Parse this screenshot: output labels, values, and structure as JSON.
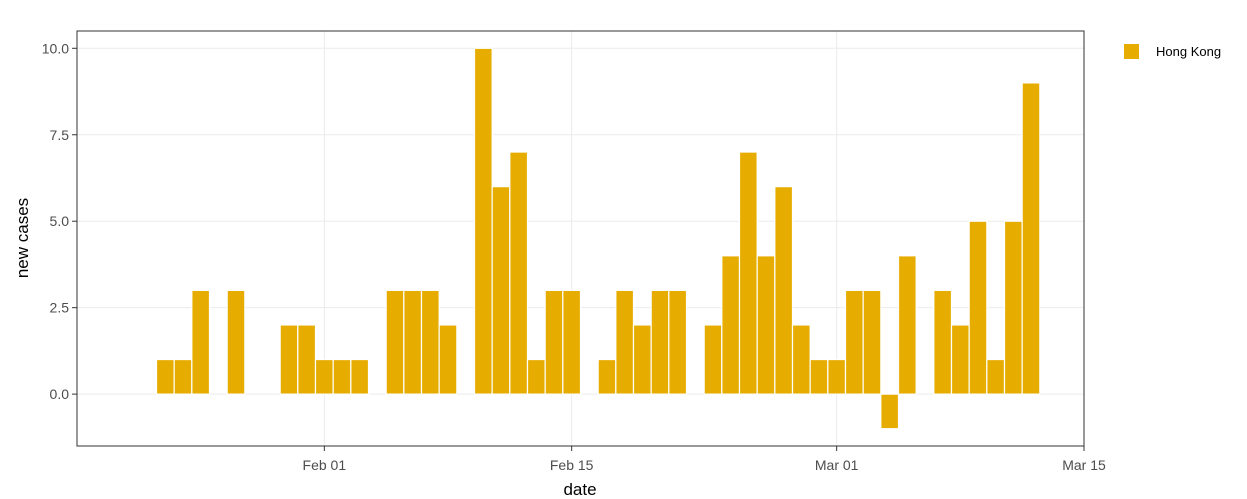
{
  "chart_data": {
    "type": "bar",
    "xlabel": "date",
    "ylabel": "new cases",
    "x_tick_labels": [
      "Feb 01",
      "Feb 15",
      "Mar 01",
      "Mar 15"
    ],
    "x_tick_dates": [
      "2020-02-01",
      "2020-02-15",
      "2020-03-01",
      "2020-03-15"
    ],
    "xlim": [
      "2020-01-18",
      "2020-03-15"
    ],
    "y_ticks": [
      0.0,
      2.5,
      5.0,
      7.5,
      10.0
    ],
    "y_tick_labels": [
      "0.0",
      "2.5",
      "5.0",
      "7.5",
      "10.0"
    ],
    "ylim": [
      -1.5,
      10.5
    ],
    "grid": true,
    "legend": "top-right",
    "series": [
      {
        "name": "Hong Kong",
        "color": "#E6AD00",
        "x": [
          "2020-01-23",
          "2020-01-24",
          "2020-01-25",
          "2020-01-27",
          "2020-01-30",
          "2020-01-31",
          "2020-02-01",
          "2020-02-02",
          "2020-02-03",
          "2020-02-05",
          "2020-02-06",
          "2020-02-07",
          "2020-02-08",
          "2020-02-10",
          "2020-02-11",
          "2020-02-12",
          "2020-02-13",
          "2020-02-14",
          "2020-02-15",
          "2020-02-17",
          "2020-02-18",
          "2020-02-19",
          "2020-02-20",
          "2020-02-21",
          "2020-02-23",
          "2020-02-24",
          "2020-02-25",
          "2020-02-26",
          "2020-02-27",
          "2020-02-28",
          "2020-02-29",
          "2020-03-01",
          "2020-03-02",
          "2020-03-03",
          "2020-03-04",
          "2020-03-05",
          "2020-03-07",
          "2020-03-08",
          "2020-03-09",
          "2020-03-10",
          "2020-03-11",
          "2020-03-12"
        ],
        "values": [
          1,
          1,
          3,
          3,
          2,
          2,
          1,
          1,
          1,
          3,
          3,
          3,
          2,
          10,
          6,
          7,
          1,
          3,
          3,
          1,
          3,
          2,
          3,
          3,
          2,
          4,
          7,
          4,
          6,
          2,
          1,
          1,
          3,
          3,
          -1,
          4,
          3,
          2,
          5,
          1,
          5,
          9
        ]
      }
    ]
  }
}
